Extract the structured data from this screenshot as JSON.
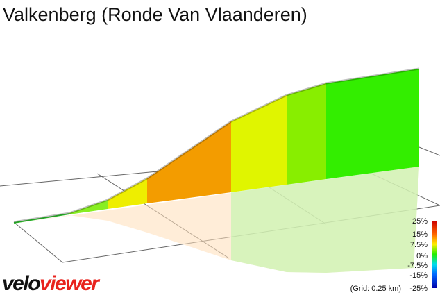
{
  "title": "Valkenberg (Ronde Van Vlaanderen)",
  "legend": {
    "labels": [
      "25%",
      "15%",
      "7.5%",
      "0%",
      "-7.5%",
      "-15%",
      "-25%"
    ]
  },
  "grid_note": "(Grid: 0.25 km)",
  "logo": {
    "part1": "velo",
    "part2": "viewer"
  }
}
